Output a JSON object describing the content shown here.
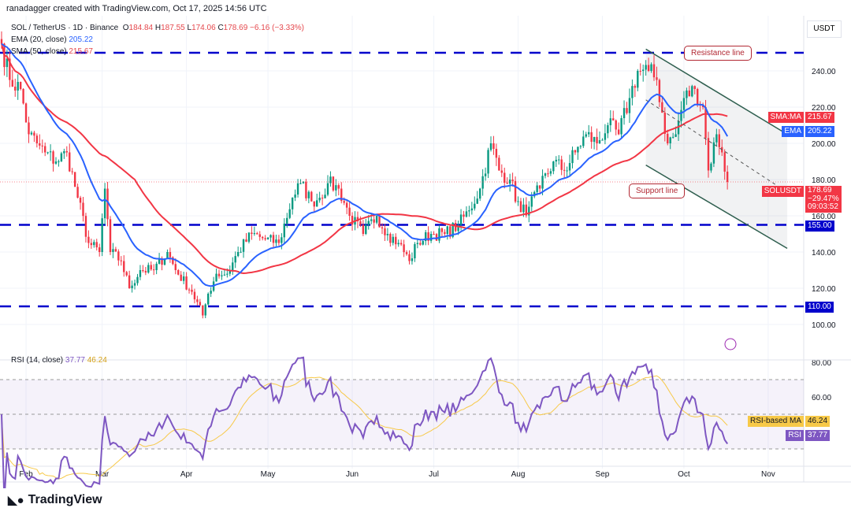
{
  "credit": "ranadagger created with TradingView.com, Oct 17, 2025 14:56 UTC",
  "legend": {
    "symbol": "SOL / TetherUS · 1D · Binance",
    "o_label": "O",
    "o": "184.84",
    "h_label": "H",
    "h": "187.55",
    "l_label": "L",
    "l": "174.06",
    "c_label": "C",
    "c": "178.69",
    "change": "−6.16 (−3.33%)",
    "ema": "EMA (20, close)",
    "ema_val": "205.22",
    "sma": "SMA (50, close)",
    "sma_val": "215.67",
    "rsi": "RSI (14, close)",
    "rsi_val": "37.77",
    "rsi_ma_val": "46.24"
  },
  "currency": "USDT",
  "tags": {
    "sma_label": "SMA:MA",
    "sma": "215.67",
    "ema_label": "EMA",
    "ema": "205.22",
    "sym_label": "SOLUSDT",
    "price": "178.69",
    "pct": "−29.47%",
    "countdown": "09:03:52",
    "level155": "155.00",
    "level110": "110.00",
    "rsi_ma_label": "RSI-based MA",
    "rsi_ma": "46.24",
    "rsi_label": "RSI",
    "rsi": "37.77"
  },
  "notes": {
    "resistance": "Resistance line",
    "support": "Support line"
  },
  "logo": "TradingView",
  "colors": {
    "up": "#089981",
    "down": "#f23645",
    "ema": "#2962ff",
    "sma": "#f23645",
    "rsi": "#7e57c2",
    "rsima": "#f7c948",
    "level": "#0000cc"
  },
  "chart_data": {
    "type": "candlestick",
    "title": "SOL / TetherUS · 1D · Binance",
    "ylim": [
      90,
      255
    ],
    "yticks": [
      240,
      220,
      200,
      180,
      160,
      140,
      120,
      100
    ],
    "rsi_ticks": [
      80,
      60
    ],
    "xticks": [
      "Feb",
      "Mar",
      "Apr",
      "May",
      "Jun",
      "Jul",
      "Aug",
      "Sep",
      "Oct",
      "Nov"
    ],
    "levels": [
      250,
      155,
      110
    ],
    "keypoints": [
      [
        "2025-01-23",
        255
      ],
      [
        "2025-01-26",
        235
      ],
      [
        "2025-01-30",
        230
      ],
      [
        "2025-02-02",
        205
      ],
      [
        "2025-02-05",
        200
      ],
      [
        "2025-02-08",
        195
      ],
      [
        "2025-02-12",
        190
      ],
      [
        "2025-02-16",
        195
      ],
      [
        "2025-02-20",
        170
      ],
      [
        "2025-02-24",
        145
      ],
      [
        "2025-02-28",
        140
      ],
      [
        "2025-03-02",
        175
      ],
      [
        "2025-03-04",
        140
      ],
      [
        "2025-03-08",
        135
      ],
      [
        "2025-03-11",
        120
      ],
      [
        "2025-03-15",
        130
      ],
      [
        "2025-03-20",
        130
      ],
      [
        "2025-03-25",
        140
      ],
      [
        "2025-03-28",
        130
      ],
      [
        "2025-04-03",
        118
      ],
      [
        "2025-04-07",
        105
      ],
      [
        "2025-04-09",
        117
      ],
      [
        "2025-04-12",
        128
      ],
      [
        "2025-04-16",
        128
      ],
      [
        "2025-04-20",
        140
      ],
      [
        "2025-04-25",
        150
      ],
      [
        "2025-04-30",
        147
      ],
      [
        "2025-05-05",
        145
      ],
      [
        "2025-05-10",
        170
      ],
      [
        "2025-05-13",
        178
      ],
      [
        "2025-05-17",
        168
      ],
      [
        "2025-05-20",
        170
      ],
      [
        "2025-05-23",
        178
      ],
      [
        "2025-05-27",
        175
      ],
      [
        "2025-05-31",
        160
      ],
      [
        "2025-06-05",
        150
      ],
      [
        "2025-06-10",
        160
      ],
      [
        "2025-06-14",
        150
      ],
      [
        "2025-06-18",
        145
      ],
      [
        "2025-06-22",
        135
      ],
      [
        "2025-06-25",
        145
      ],
      [
        "2025-06-30",
        150
      ],
      [
        "2025-07-05",
        150
      ],
      [
        "2025-07-10",
        155
      ],
      [
        "2025-07-14",
        163
      ],
      [
        "2025-07-18",
        175
      ],
      [
        "2025-07-22",
        200
      ],
      [
        "2025-07-25",
        185
      ],
      [
        "2025-07-29",
        180
      ],
      [
        "2025-08-02",
        162
      ],
      [
        "2025-08-05",
        165
      ],
      [
        "2025-08-09",
        175
      ],
      [
        "2025-08-14",
        190
      ],
      [
        "2025-08-18",
        185
      ],
      [
        "2025-08-22",
        195
      ],
      [
        "2025-08-26",
        205
      ],
      [
        "2025-08-30",
        200
      ],
      [
        "2025-09-03",
        210
      ],
      [
        "2025-09-07",
        205
      ],
      [
        "2025-09-11",
        225
      ],
      [
        "2025-09-14",
        240
      ],
      [
        "2025-09-18",
        240
      ],
      [
        "2025-09-21",
        235
      ],
      [
        "2025-09-25",
        200
      ],
      [
        "2025-09-28",
        205
      ],
      [
        "2025-10-01",
        225
      ],
      [
        "2025-10-05",
        230
      ],
      [
        "2025-10-08",
        220
      ],
      [
        "2025-10-10",
        185
      ],
      [
        "2025-10-13",
        205
      ],
      [
        "2025-10-15",
        195
      ],
      [
        "2025-10-17",
        178.69
      ]
    ],
    "channel": {
      "resistance": [
        [
          "2025-09-17",
          252
        ],
        [
          "2025-11-08",
          205
        ]
      ],
      "middle": [
        [
          "2025-09-17",
          224
        ],
        [
          "2025-11-08",
          173
        ]
      ],
      "support": [
        [
          "2025-09-17",
          188
        ],
        [
          "2025-11-08",
          142
        ]
      ]
    }
  }
}
